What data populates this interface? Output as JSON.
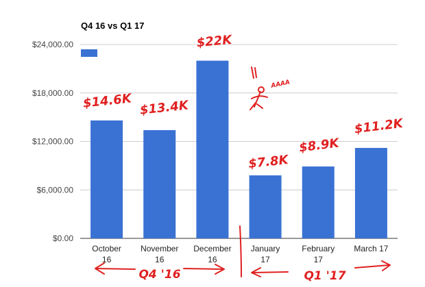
{
  "chart_data": {
    "type": "bar",
    "title": "Q4 16 vs Q1 17",
    "categories": [
      [
        "October",
        "16"
      ],
      [
        "November",
        "16"
      ],
      [
        "December",
        "16"
      ],
      [
        "January",
        "17"
      ],
      [
        "February",
        "17"
      ],
      [
        "March 17"
      ]
    ],
    "values": [
      14600,
      13400,
      22000,
      7800,
      8900,
      11200
    ],
    "ylim": [
      0,
      24000
    ],
    "yticks": [
      "$0.00",
      "$6,000.00",
      "$12,000.00",
      "$18,000.00",
      "$24,000.00"
    ],
    "ytick_values": [
      0,
      6000,
      12000,
      18000,
      24000
    ],
    "grid": true,
    "legend": "top-left",
    "bar_color": "#3a72d4",
    "grid_color": "#cccccc",
    "annotations": {
      "bar_labels": [
        "$14.6K",
        "$13.4K",
        "$22K",
        "$7.8K",
        "$8.9K",
        "$11.2K"
      ],
      "scribble": "AAAA",
      "group_left": "Q4 '16",
      "group_right": "Q1 '17",
      "ink_color": "#e02020"
    }
  }
}
